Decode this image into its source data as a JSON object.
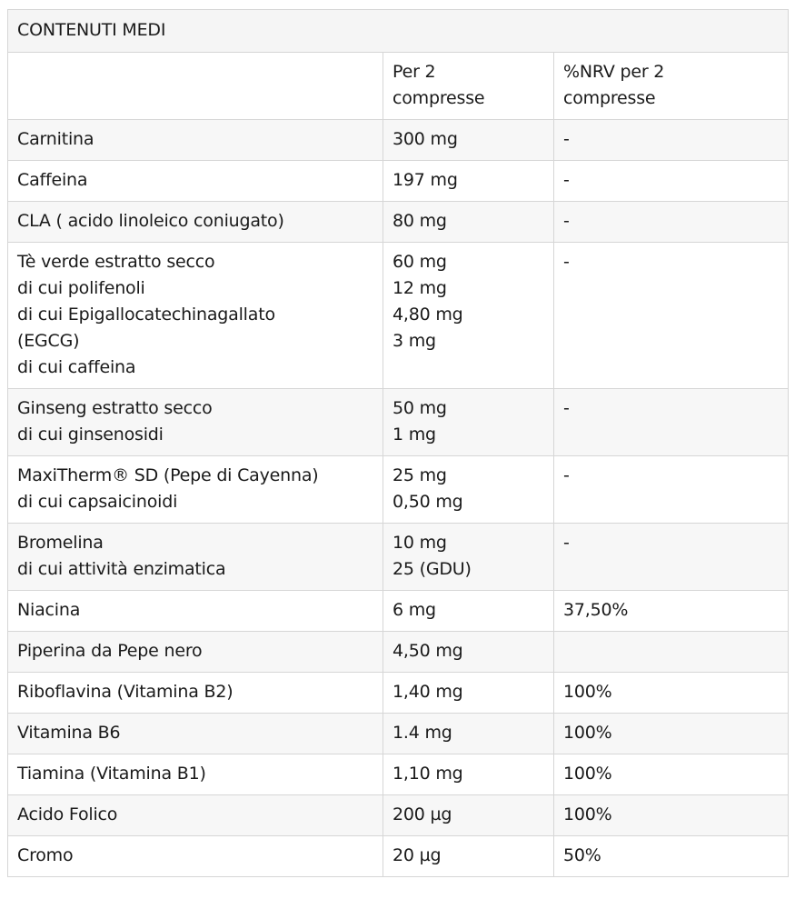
{
  "title": "CONTENUTI MEDI",
  "headers": [
    "",
    "Per 2\ncompresse",
    "%NRV per 2\ncompresse"
  ],
  "rows": [
    {
      "ingredient": [
        "Carnitina"
      ],
      "amount": [
        "300 mg"
      ],
      "nrv": [
        "-"
      ]
    },
    {
      "ingredient": [
        "Caffeina"
      ],
      "amount": [
        "197 mg"
      ],
      "nrv": [
        "-"
      ]
    },
    {
      "ingredient": [
        "CLA ( acido linoleico coniugato)"
      ],
      "amount": [
        "80 mg"
      ],
      "nrv": [
        "-"
      ]
    },
    {
      "ingredient": [
        "Tè verde estratto secco",
        "di cui polifenoli",
        "di cui Epigallocatechinagallato",
        "(EGCG)",
        "di cui caffeina"
      ],
      "amount": [
        "60 mg",
        "12 mg",
        "4,80 mg",
        "3 mg"
      ],
      "nrv": [
        "-"
      ]
    },
    {
      "ingredient": [
        "Ginseng estratto secco",
        "di cui ginsenosidi"
      ],
      "amount": [
        "50 mg",
        "1 mg"
      ],
      "nrv": [
        "-"
      ]
    },
    {
      "ingredient": [
        "MaxiTherm® SD (Pepe di Cayenna)",
        "di cui capsaicinoidi"
      ],
      "amount": [
        "25 mg",
        "0,50 mg"
      ],
      "nrv": [
        "-"
      ]
    },
    {
      "ingredient": [
        "Bromelina",
        "di cui attività enzimatica"
      ],
      "amount": [
        "10 mg",
        "25 (GDU)"
      ],
      "nrv": [
        "-"
      ]
    },
    {
      "ingredient": [
        "Niacina"
      ],
      "amount": [
        "6 mg"
      ],
      "nrv": [
        "37,50%"
      ]
    },
    {
      "ingredient": [
        "Piperina da Pepe nero"
      ],
      "amount": [
        "4,50 mg"
      ],
      "nrv": [
        ""
      ]
    },
    {
      "ingredient": [
        "Riboflavina (Vitamina B2)"
      ],
      "amount": [
        "1,40 mg"
      ],
      "nrv": [
        "100%"
      ]
    },
    {
      "ingredient": [
        "Vitamina B6"
      ],
      "amount": [
        "1.4 mg"
      ],
      "nrv": [
        "100%"
      ]
    },
    {
      "ingredient": [
        "Tiamina (Vitamina B1)"
      ],
      "amount": [
        "1,10 mg"
      ],
      "nrv": [
        "100%"
      ]
    },
    {
      "ingredient": [
        "Acido Folico"
      ],
      "amount": [
        "200 µg"
      ],
      "nrv": [
        "100%"
      ]
    },
    {
      "ingredient": [
        "Cromo"
      ],
      "amount": [
        "20 µg"
      ],
      "nrv": [
        "50%"
      ]
    }
  ]
}
